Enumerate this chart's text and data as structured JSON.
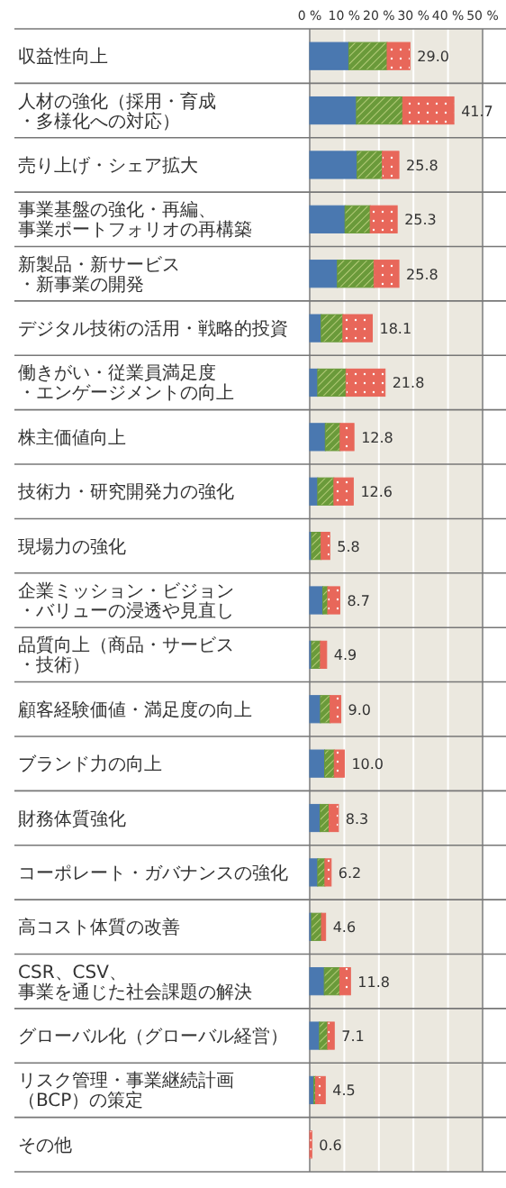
{
  "chart_data": {
    "type": "bar",
    "orientation": "horizontal",
    "stacked": true,
    "categories": [
      "収益性向上",
      "人材の強化（採用・育成・多様化への対応）",
      "売り上げ・シェア拡大",
      "事業基盤の強化・再編、事業ポートフォリオの再構築",
      "新製品・新サービス・新事業の開発",
      "デジタル技術の活用・戦略的投資",
      "働きがい・従業員満足度・エンゲージメントの向上",
      "株主価値向上",
      "技術力・研究開発力の強化",
      "現場力の強化",
      "企業ミッション・ビジョン・バリューの浸透や見直し",
      "品質向上（商品・サービス・技術）",
      "顧客経験価値・満足度の向上",
      "ブランド力の向上",
      "財務体質強化",
      "コーポレート・ガバナンスの強化",
      "高コスト体質の改善",
      "CSR、CSV、事業を通じた社会課題の解決",
      "グローバル化（グローバル経営）",
      "リスク管理・事業継続計画（BCP）の策定",
      "その他"
    ],
    "series": [
      {
        "color": "#4a78b0",
        "values": [
          11.3,
          13.5,
          13.7,
          10.2,
          8.0,
          3.3,
          2.3,
          4.5,
          2.3,
          0.5,
          3.8,
          0.5,
          3.1,
          4.3,
          3.0,
          2.3,
          0.5,
          4.2,
          2.8,
          1.2,
          0
        ]
      },
      {
        "color": "#6a9a3a",
        "values": [
          11.1,
          13.4,
          7.3,
          7.3,
          10.6,
          6.3,
          8.2,
          4.3,
          4.7,
          2.8,
          1.4,
          2.6,
          2.8,
          2.8,
          2.6,
          2.1,
          2.9,
          4.5,
          2.4,
          0.5,
          0
        ]
      },
      {
        "color": "#e8675a",
        "values": [
          6.6,
          14.8,
          4.8,
          7.8,
          7.2,
          8.5,
          11.3,
          4.0,
          5.6,
          2.5,
          3.5,
          1.8,
          3.1,
          2.9,
          2.7,
          1.8,
          1.2,
          3.1,
          1.9,
          2.8,
          0.6
        ]
      }
    ],
    "totals": [
      "29.0",
      "41.7",
      "25.8",
      "25.3",
      "25.8",
      "18.1",
      "21.8",
      "12.8",
      "12.6",
      "5.8",
      "8.7",
      "4.9",
      "9.0",
      "10.0",
      "8.3",
      "6.2",
      "4.6",
      "11.8",
      "7.1",
      "4.5",
      "0.6"
    ],
    "xlim": [
      0,
      50
    ],
    "xticks": [
      {
        "value": 0,
        "label": "0 %"
      },
      {
        "value": 10,
        "label": "10 %"
      },
      {
        "value": 20,
        "label": "20 %"
      },
      {
        "value": 30,
        "label": "30 %"
      },
      {
        "value": 40,
        "label": "40 %"
      },
      {
        "value": 50,
        "label": "50 %"
      }
    ],
    "grid": "x"
  }
}
